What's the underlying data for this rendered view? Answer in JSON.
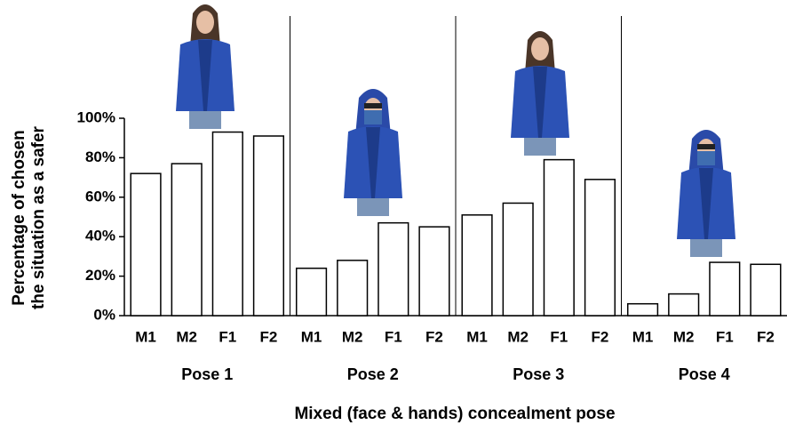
{
  "chart_data": {
    "type": "bar",
    "categories": [
      "M1",
      "M2",
      "F1",
      "F2"
    ],
    "series": [
      {
        "name": "Pose 1",
        "values": [
          72,
          77,
          93,
          91
        ]
      },
      {
        "name": "Pose 2",
        "values": [
          24,
          28,
          47,
          45
        ]
      },
      {
        "name": "Pose 3",
        "values": [
          51,
          57,
          79,
          69
        ]
      },
      {
        "name": "Pose 4",
        "values": [
          6,
          11,
          27,
          26
        ]
      }
    ],
    "color": "#ffffff",
    "ylim": [
      0,
      100
    ],
    "yticks": [
      {
        "value": 0,
        "label": "0%"
      },
      {
        "value": 20,
        "label": "20%"
      },
      {
        "value": 40,
        "label": "40%"
      },
      {
        "value": 60,
        "label": "60%"
      },
      {
        "value": 80,
        "label": "80%"
      },
      {
        "value": 100,
        "label": "100%"
      }
    ],
    "ylabel": [
      "Percentage of chosen",
      "the situation as a safer"
    ],
    "xlabel": "Mixed (face & hands) concealment pose",
    "grid": false
  }
}
